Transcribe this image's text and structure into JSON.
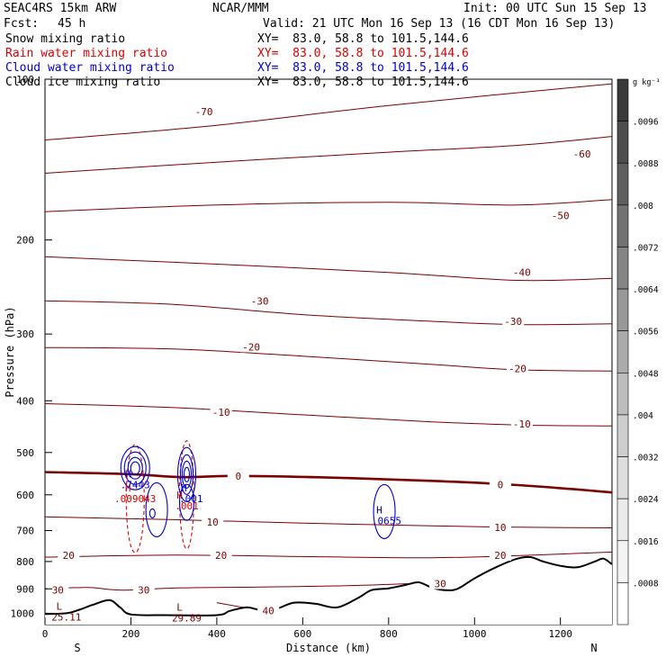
{
  "header": {
    "model": "SEAC4RS 15km ARW",
    "org": "NCAR/MMM",
    "init": "Init: 00 UTC Sun 15 Sep 13",
    "fcst_label": "Fcst:",
    "fcst_value": "45 h",
    "valid": "Valid: 21 UTC Mon 16 Sep 13 (16 CDT Mon 16 Sep 13)"
  },
  "fields": [
    {
      "name": "Snow mixing ratio",
      "xy": "XY=  83.0, 58.8 to 101.5,144.6",
      "color": "#000000"
    },
    {
      "name": "Rain water mixing ratio",
      "xy": "XY=  83.0, 58.8 to 101.5,144.6",
      "color": "#dd0000"
    },
    {
      "name": "Cloud water mixing ratio",
      "xy": "XY=  83.0, 58.8 to 101.5,144.6",
      "color": "#0000cc"
    },
    {
      "name": "Cloud ice mixing ratio",
      "xy": "XY=  83.0, 58.8 to 101.5,144.6",
      "color": "#000000"
    }
  ],
  "colorbar": {
    "unit": "g kg⁻¹",
    "levels": [
      ".0096",
      ".0088",
      ".008",
      ".0072",
      ".0064",
      ".0056",
      ".0048",
      ".004",
      ".0032",
      ".0024",
      ".0016",
      ".0008"
    ],
    "colors": [
      "#3a3a3a",
      "#4d4d4d",
      "#5f5f5f",
      "#727272",
      "#858585",
      "#989898",
      "#ababab",
      "#bdbdbd",
      "#cecece",
      "#dedede",
      "#ebebeb",
      "#f4f4f4",
      "#ffffff"
    ]
  },
  "colors": {
    "temperature": "#7a0000",
    "freezing": "#7a0000",
    "rain": "#dd0000",
    "cloud": "#0000cc",
    "terrain": "#000000"
  },
  "chart_data": {
    "type": "contour-cross-section",
    "ylabel": "Pressure (hPa)",
    "xlabel": "Distance (km)",
    "xlim": [
      0,
      1320
    ],
    "ylim": [
      1050,
      100
    ],
    "y_log": true,
    "xticks": [
      "0",
      "200",
      "400",
      "600",
      "800",
      "1000",
      "1200"
    ],
    "yticks": [
      "200",
      "300",
      "400",
      "500",
      "600",
      "700",
      "800",
      "900",
      "1000"
    ],
    "top_ytick_label": "100",
    "end_labels": {
      "left": "S",
      "right": "N"
    },
    "temperature_contours": [
      {
        "value": -70,
        "labels": [
          {
            "text": "-70",
            "x": 370,
            "p": 115
          }
        ],
        "points": [
          [
            0,
            130
          ],
          [
            400,
            122
          ],
          [
            800,
            112
          ],
          [
            1320,
            102
          ]
        ]
      },
      {
        "value": -60,
        "labels": [
          {
            "text": "-60",
            "x": 1250,
            "p": 138
          }
        ],
        "points": [
          [
            0,
            150
          ],
          [
            400,
            143
          ],
          [
            800,
            137
          ],
          [
            1100,
            133
          ],
          [
            1320,
            128
          ]
        ]
      },
      {
        "value": -50,
        "labels": [
          {
            "text": "-50",
            "x": 1200,
            "p": 180
          }
        ],
        "points": [
          [
            0,
            177
          ],
          [
            400,
            172
          ],
          [
            800,
            170
          ],
          [
            1100,
            172
          ],
          [
            1320,
            168
          ]
        ]
      },
      {
        "value": -40,
        "labels": [
          {
            "text": "-40",
            "x": 1110,
            "p": 230
          }
        ],
        "points": [
          [
            0,
            215
          ],
          [
            400,
            222
          ],
          [
            800,
            230
          ],
          [
            1100,
            238
          ],
          [
            1320,
            236
          ]
        ]
      },
      {
        "value": -30,
        "labels": [
          {
            "text": "-30",
            "x": 500,
            "p": 260
          },
          {
            "text": "-30",
            "x": 1090,
            "p": 284
          }
        ],
        "points": [
          [
            0,
            260
          ],
          [
            300,
            264
          ],
          [
            600,
            276
          ],
          [
            900,
            284
          ],
          [
            1100,
            288
          ],
          [
            1320,
            287
          ]
        ]
      },
      {
        "value": -20,
        "labels": [
          {
            "text": "-20",
            "x": 480,
            "p": 317
          },
          {
            "text": "-20",
            "x": 1100,
            "p": 348
          }
        ],
        "points": [
          [
            0,
            318
          ],
          [
            300,
            320
          ],
          [
            600,
            330
          ],
          [
            900,
            342
          ],
          [
            1100,
            350
          ],
          [
            1320,
            352
          ]
        ]
      },
      {
        "value": -10,
        "labels": [
          {
            "text": "-10",
            "x": 410,
            "p": 420
          },
          {
            "text": "-10",
            "x": 1110,
            "p": 442
          }
        ],
        "points": [
          [
            0,
            405
          ],
          [
            300,
            412
          ],
          [
            600,
            425
          ],
          [
            900,
            438
          ],
          [
            1100,
            444
          ],
          [
            1320,
            446
          ]
        ]
      },
      {
        "value": 0,
        "labels": [
          {
            "text": "0",
            "x": 450,
            "p": 553
          },
          {
            "text": "0",
            "x": 1060,
            "p": 574
          }
        ],
        "points": [
          [
            0,
            544
          ],
          [
            200,
            549
          ],
          [
            320,
            556
          ],
          [
            450,
            553
          ],
          [
            700,
            558
          ],
          [
            900,
            565
          ],
          [
            1050,
            572
          ],
          [
            1200,
            583
          ],
          [
            1320,
            594
          ]
        ]
      },
      {
        "value": 10,
        "labels": [
          {
            "text": "10",
            "x": 390,
            "p": 675
          },
          {
            "text": "10",
            "x": 1060,
            "p": 690
          }
        ],
        "points": [
          [
            0,
            660
          ],
          [
            300,
            668
          ],
          [
            600,
            678
          ],
          [
            900,
            686
          ],
          [
            1100,
            690
          ],
          [
            1320,
            692
          ]
        ]
      },
      {
        "value": 20,
        "labels": [
          {
            "text": "20",
            "x": 55,
            "p": 779
          },
          {
            "text": "20",
            "x": 410,
            "p": 779
          },
          {
            "text": "20",
            "x": 1060,
            "p": 779
          }
        ],
        "points": [
          [
            0,
            785
          ],
          [
            300,
            778
          ],
          [
            600,
            783
          ],
          [
            900,
            787
          ],
          [
            1100,
            780
          ],
          [
            1320,
            768
          ]
        ]
      },
      {
        "value": 30,
        "labels": [
          {
            "text": "30",
            "x": 30,
            "p": 905
          },
          {
            "text": "30",
            "x": 230,
            "p": 905
          },
          {
            "text": "30",
            "x": 920,
            "p": 880
          }
        ],
        "points": [
          [
            0,
            900
          ],
          [
            100,
            895
          ],
          [
            180,
            905
          ],
          [
            300,
            897
          ],
          [
            500,
            893
          ],
          [
            700,
            888
          ],
          [
            850,
            880
          ]
        ]
      },
      {
        "value": 40,
        "labels": [
          {
            "text": "40",
            "x": 520,
            "p": 988
          }
        ],
        "points": [
          [
            400,
            955
          ],
          [
            500,
            985
          ],
          [
            560,
            975
          ]
        ]
      }
    ],
    "extrema_labels": [
      {
        "type": "L",
        "value": "25.11",
        "x": 50,
        "p": 1000,
        "color": "#7a0000"
      },
      {
        "type": "L",
        "value": "29.89",
        "x": 330,
        "p": 1005,
        "color": "#7a0000"
      },
      {
        "type": "H",
        "value": ".009043",
        "x": 210,
        "p": 600,
        "color": "#dd0000"
      },
      {
        "type": "H",
        "value": ".001",
        "x": 330,
        "p": 620,
        "color": "#dd0000"
      },
      {
        "type": "H",
        "value": ".7443",
        "x": 210,
        "p": 565,
        "color": "#0000cc"
      },
      {
        "type": "H",
        "value": ".001",
        "x": 340,
        "p": 600,
        "color": "#0000cc"
      },
      {
        "type": "H",
        "value": ".0655",
        "x": 795,
        "p": 660,
        "color": "#0000cc"
      }
    ],
    "terrain": [
      [
        0,
        1003
      ],
      [
        50,
        1000
      ],
      [
        80,
        985
      ],
      [
        110,
        965
      ],
      [
        150,
        945
      ],
      [
        175,
        975
      ],
      [
        200,
        1005
      ],
      [
        280,
        1008
      ],
      [
        400,
        1008
      ],
      [
        430,
        990
      ],
      [
        470,
        975
      ],
      [
        500,
        985
      ],
      [
        540,
        980
      ],
      [
        580,
        955
      ],
      [
        630,
        960
      ],
      [
        680,
        975
      ],
      [
        730,
        935
      ],
      [
        760,
        905
      ],
      [
        800,
        898
      ],
      [
        840,
        885
      ],
      [
        870,
        875
      ],
      [
        900,
        895
      ],
      [
        930,
        905
      ],
      [
        960,
        900
      ],
      [
        1000,
        860
      ],
      [
        1050,
        820
      ],
      [
        1100,
        790
      ],
      [
        1130,
        785
      ],
      [
        1160,
        800
      ],
      [
        1200,
        815
      ],
      [
        1240,
        820
      ],
      [
        1280,
        800
      ],
      [
        1300,
        790
      ],
      [
        1320,
        810
      ]
    ]
  }
}
